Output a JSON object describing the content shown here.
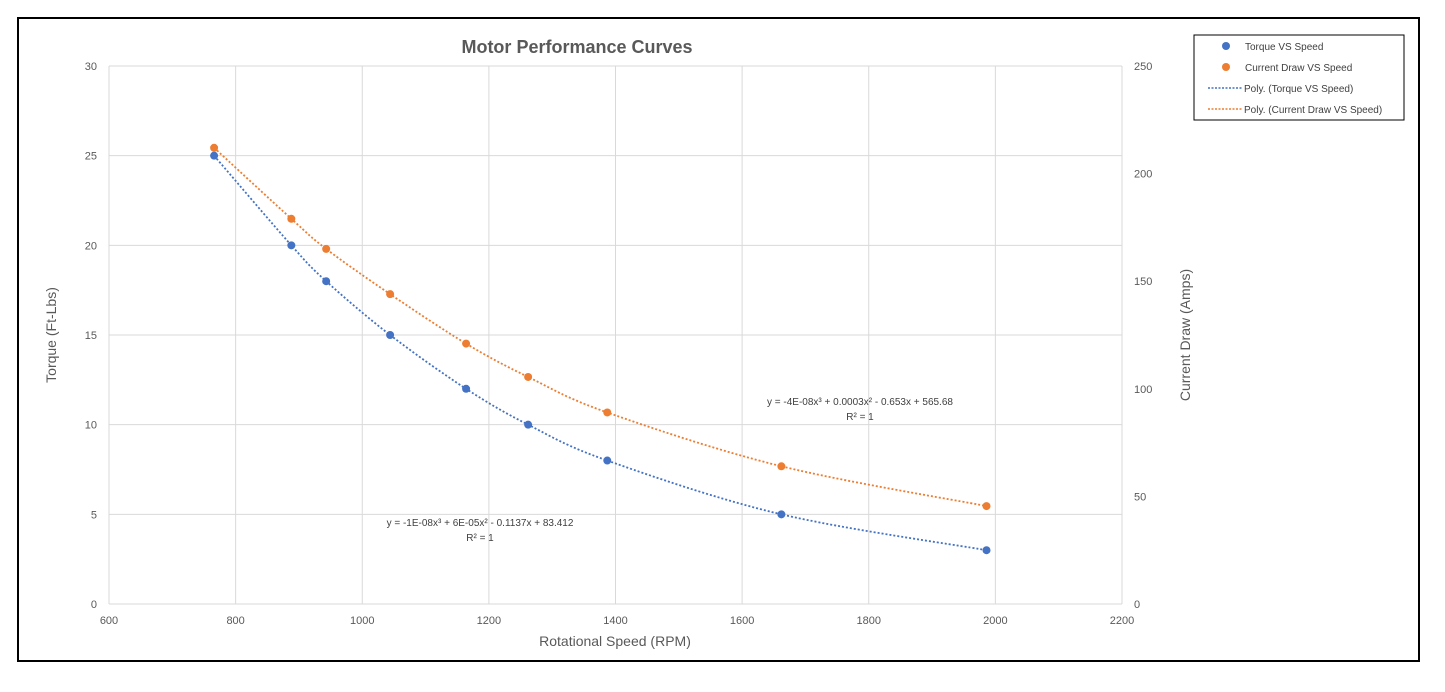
{
  "chart_data": {
    "type": "scatter",
    "title": "Motor Performance Curves",
    "xlabel": "Rotational Speed (RPM)",
    "ylabel": "Torque (Ft-Lbs)",
    "y2label": "Current Draw (Amps)",
    "xlim": [
      600,
      2200
    ],
    "ylim": [
      0,
      30
    ],
    "y2lim": [
      0,
      250
    ],
    "xticks": [
      600,
      800,
      1000,
      1200,
      1400,
      1600,
      1800,
      2000,
      2200
    ],
    "yticks": [
      0,
      5,
      10,
      15,
      20,
      25,
      30
    ],
    "y2ticks": [
      0,
      50,
      100,
      150,
      200,
      250
    ],
    "grid": true,
    "legend_position": "top-right",
    "series": [
      {
        "name": "Torque VS Speed",
        "axis": "left",
        "color": "#4472C4",
        "x": [
          766,
          888,
          943,
          1044,
          1164,
          1262,
          1387,
          1662,
          1986
        ],
        "y": [
          25,
          20,
          18,
          15,
          12,
          10,
          8,
          5,
          3
        ]
      },
      {
        "name": "Current Draw VS Speed",
        "axis": "right",
        "color": "#ED7D31",
        "x": [
          766,
          888,
          943,
          1044,
          1164,
          1262,
          1387,
          1662,
          1986
        ],
        "y": [
          212,
          179,
          165,
          144,
          121,
          105.5,
          89,
          64,
          45.5
        ]
      }
    ],
    "trendlines": [
      {
        "name": "Poly. (Torque VS Speed)",
        "color": "#4472C4",
        "equation": "y = -1E-08x³ + 6E-05x² - 0.1137x + 83.412",
        "r2": "R² = 1"
      },
      {
        "name": "Poly. (Current Draw VS Speed)",
        "color": "#ED7D31",
        "equation": "y = -4E-08x³ + 0.0003x² - 0.653x + 565.68",
        "r2": "R² = 1"
      }
    ]
  }
}
